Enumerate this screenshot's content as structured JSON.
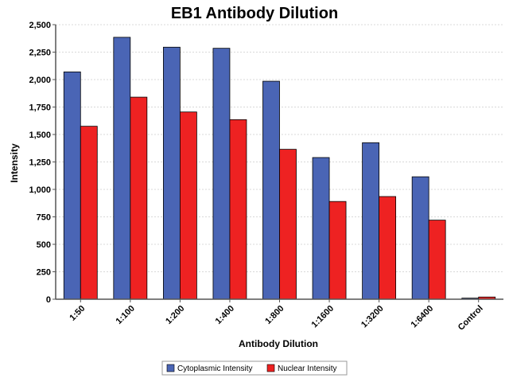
{
  "chart_data": {
    "type": "bar",
    "title": "EB1 Antibody Dilution",
    "xlabel": "Antibody Dilution",
    "ylabel": "Intensity",
    "categories": [
      "1:50",
      "1:100",
      "1:200",
      "1:400",
      "1:800",
      "1:1600",
      "1:3200",
      "1:6400",
      "Control"
    ],
    "series": [
      {
        "name": "Cytoplasmic Intensity",
        "color": "#4a65b5",
        "values": [
          2070,
          2385,
          2295,
          2285,
          1985,
          1290,
          1425,
          1115,
          10
        ]
      },
      {
        "name": "Nuclear Intensity",
        "color": "#ee2222",
        "values": [
          1575,
          1840,
          1705,
          1635,
          1365,
          890,
          935,
          720,
          20
        ]
      }
    ],
    "ylim": [
      0,
      2500
    ],
    "yticks": [
      0,
      250,
      500,
      750,
      1000,
      1250,
      1500,
      1750,
      2000,
      2250,
      2500
    ],
    "ytick_labels": [
      "0",
      "250",
      "500",
      "750",
      "1,000",
      "1,250",
      "1,500",
      "1,750",
      "2,000",
      "2,250",
      "2,500"
    ],
    "grid": true,
    "legend_position": "bottom"
  }
}
